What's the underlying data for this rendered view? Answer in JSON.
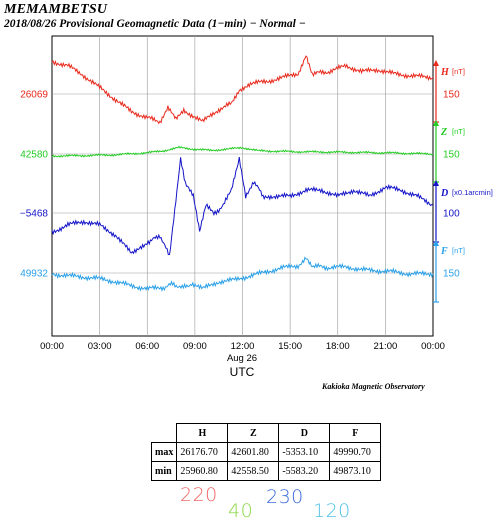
{
  "header": {
    "station": "MEMAMBETSU",
    "subtitle": "2018/08/26  Provisional Geomagnetic Data (1−min)  − Normal −"
  },
  "credit": "Kakioka Magnetic Observatory",
  "chart_data": {
    "type": "line",
    "x_axis": {
      "ticks": [
        "00:00",
        "03:00",
        "06:00",
        "09:00",
        "12:00",
        "15:00",
        "18:00",
        "21:00",
        "00:00"
      ],
      "range_hours": [
        0,
        24
      ],
      "date_label": "Aug 26",
      "label": "UTC"
    },
    "grid": true,
    "series": [
      {
        "name": "H",
        "unit": "[nT]",
        "color": "#e8291c",
        "left_value": "26069",
        "right_scale": "150",
        "points": [
          [
            0,
            26150
          ],
          [
            1,
            26140
          ],
          [
            2,
            26115
          ],
          [
            3,
            26085
          ],
          [
            4,
            26055
          ],
          [
            5,
            26025
          ],
          [
            6,
            26010
          ],
          [
            6.8,
            26000
          ],
          [
            7.3,
            26035
          ],
          [
            7.8,
            26005
          ],
          [
            8.3,
            26030
          ],
          [
            8.8,
            26015
          ],
          [
            9.5,
            26000
          ],
          [
            10.5,
            26030
          ],
          [
            11.3,
            26045
          ],
          [
            11.8,
            26080
          ],
          [
            12.5,
            26095
          ],
          [
            13.5,
            26100
          ],
          [
            14.5,
            26110
          ],
          [
            15.5,
            26120
          ],
          [
            16.0,
            26165
          ],
          [
            16.4,
            26120
          ],
          [
            17.5,
            26125
          ],
          [
            18.5,
            26140
          ],
          [
            19.5,
            26125
          ],
          [
            20.5,
            26130
          ],
          [
            21.5,
            26120
          ],
          [
            22.5,
            26115
          ],
          [
            24,
            26110
          ]
        ]
      },
      {
        "name": "Z",
        "unit": "[nT]",
        "color": "#22cc22",
        "left_value": "42580",
        "right_scale": "150",
        "points": [
          [
            0,
            42575
          ],
          [
            2,
            42576
          ],
          [
            4,
            42578
          ],
          [
            6,
            42583
          ],
          [
            7,
            42588
          ],
          [
            8,
            42596
          ],
          [
            9,
            42592
          ],
          [
            10,
            42589
          ],
          [
            11,
            42592
          ],
          [
            12,
            42596
          ],
          [
            13,
            42588
          ],
          [
            15,
            42586
          ],
          [
            17,
            42585
          ],
          [
            19,
            42584
          ],
          [
            21,
            42583
          ],
          [
            24,
            42580
          ]
        ]
      },
      {
        "name": "D",
        "unit": "[x0.1arcmin]",
        "color": "#1414c8",
        "left_value": "−5468",
        "right_scale": "100",
        "points": [
          [
            0,
            -5500
          ],
          [
            1,
            -5488
          ],
          [
            2,
            -5482
          ],
          [
            3,
            -5488
          ],
          [
            4,
            -5505
          ],
          [
            5,
            -5535
          ],
          [
            5.5,
            -5525
          ],
          [
            6.2,
            -5515
          ],
          [
            6.8,
            -5505
          ],
          [
            7.4,
            -5540
          ],
          [
            7.8,
            -5450
          ],
          [
            8.1,
            -5375
          ],
          [
            8.4,
            -5420
          ],
          [
            8.9,
            -5440
          ],
          [
            9.3,
            -5500
          ],
          [
            9.7,
            -5455
          ],
          [
            10.2,
            -5470
          ],
          [
            10.8,
            -5455
          ],
          [
            11.3,
            -5430
          ],
          [
            11.8,
            -5375
          ],
          [
            12.2,
            -5440
          ],
          [
            12.7,
            -5415
          ],
          [
            13.3,
            -5440
          ],
          [
            14,
            -5440
          ],
          [
            15,
            -5440
          ],
          [
            16,
            -5430
          ],
          [
            17,
            -5430
          ],
          [
            18,
            -5440
          ],
          [
            19,
            -5430
          ],
          [
            20,
            -5440
          ],
          [
            21,
            -5425
          ],
          [
            22,
            -5430
          ],
          [
            23,
            -5440
          ],
          [
            24,
            -5455
          ]
        ]
      },
      {
        "name": "F",
        "unit": "[nT]",
        "color": "#2aa0e8",
        "left_value": "49932",
        "right_scale": "150",
        "points": [
          [
            0,
            49930
          ],
          [
            1,
            49925
          ],
          [
            2,
            49922
          ],
          [
            3,
            49918
          ],
          [
            4,
            49910
          ],
          [
            5,
            49900
          ],
          [
            6,
            49893
          ],
          [
            7,
            49895
          ],
          [
            7.6,
            49905
          ],
          [
            8.2,
            49895
          ],
          [
            8.8,
            49905
          ],
          [
            9.5,
            49893
          ],
          [
            10.5,
            49910
          ],
          [
            11.5,
            49915
          ],
          [
            12.5,
            49925
          ],
          [
            13.5,
            49935
          ],
          [
            14.5,
            49945
          ],
          [
            15.5,
            49950
          ],
          [
            16.0,
            49970
          ],
          [
            16.4,
            49950
          ],
          [
            17.5,
            49945
          ],
          [
            18.5,
            49948
          ],
          [
            19.5,
            49940
          ],
          [
            20.5,
            49938
          ],
          [
            21.5,
            49935
          ],
          [
            22.5,
            49930
          ],
          [
            24,
            49930
          ]
        ]
      }
    ]
  },
  "table": {
    "headers": [
      "H",
      "Z",
      "D",
      "F"
    ],
    "rows": [
      {
        "label": "max",
        "values": [
          "26176.70",
          "42601.80",
          "-5353.10",
          "49990.70"
        ]
      },
      {
        "label": "min",
        "values": [
          "25960.80",
          "42558.50",
          "-5583.20",
          "49873.10"
        ]
      }
    ]
  },
  "handwritten": {
    "h": "220",
    "z": "40",
    "d": "230",
    "f": "120"
  }
}
